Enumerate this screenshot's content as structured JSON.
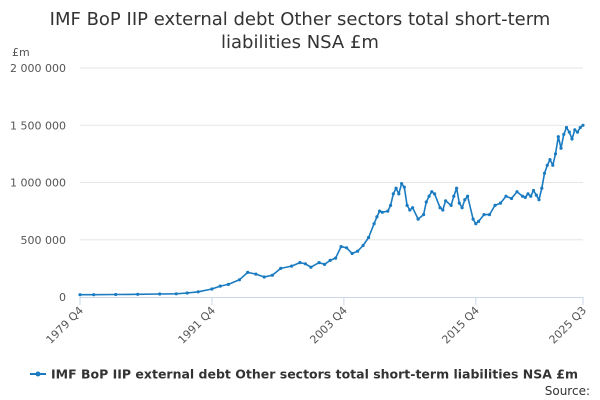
{
  "chart_data": {
    "type": "line",
    "title_lines": [
      "IMF BoP IIP external debt Other sectors total short-term",
      "liabilities NSA £m"
    ],
    "ylabel": "£m",
    "xlabel": "",
    "ylim": [
      0,
      2000000
    ],
    "yticks": [
      {
        "value": 0,
        "label": "0"
      },
      {
        "value": 500000,
        "label": "500 000"
      },
      {
        "value": 1000000,
        "label": "1 000 000"
      },
      {
        "value": 1500000,
        "label": "1 500 000"
      },
      {
        "value": 2000000,
        "label": "2 000 000"
      }
    ],
    "xlim": [
      1979.75,
      2025.5
    ],
    "xticks": [
      {
        "value": 1979.75,
        "label": "1979 Q4"
      },
      {
        "value": 1991.75,
        "label": "1991 Q4"
      },
      {
        "value": 2003.75,
        "label": "2003 Q4"
      },
      {
        "value": 2015.75,
        "label": "2015 Q4"
      },
      {
        "value": 2025.5,
        "label": "2025 Q3"
      }
    ],
    "grid": true,
    "legend_position": "bottom",
    "series": [
      {
        "name": "IMF BoP IIP external debt Other sectors total short-term liabilities NSA £m",
        "color": "#1a7bc1",
        "x": [
          1979.75,
          1981,
          1983,
          1985,
          1987,
          1988.5,
          1989.5,
          1990.5,
          1991.75,
          1992.5,
          1993.25,
          1994.25,
          1995,
          1995.75,
          1996.5,
          1997.25,
          1998,
          1999,
          1999.75,
          2000.25,
          2000.75,
          2001.5,
          2002,
          2002.5,
          2003,
          2003.5,
          2004,
          2004.5,
          2005,
          2005.5,
          2006,
          2006.5,
          2006.75,
          2007,
          2007.25,
          2007.75,
          2008,
          2008.25,
          2008.5,
          2008.75,
          2009,
          2009.25,
          2009.5,
          2009.75,
          2010,
          2010.5,
          2011,
          2011.25,
          2011.5,
          2011.75,
          2012,
          2012.5,
          2012.75,
          2013,
          2013.5,
          2013.75,
          2014,
          2014.25,
          2014.5,
          2014.75,
          2015,
          2015.5,
          2015.75,
          2016,
          2016.5,
          2017,
          2017.5,
          2018,
          2018.5,
          2019,
          2019.5,
          2020,
          2020.25,
          2020.5,
          2020.75,
          2021,
          2021.25,
          2021.5,
          2021.75,
          2022,
          2022.25,
          2022.5,
          2022.75,
          2023,
          2023.25,
          2023.5,
          2023.75,
          2024,
          2024.25,
          2024.5,
          2024.75,
          2025,
          2025.25,
          2025.5
        ],
        "values": [
          20000,
          20000,
          22000,
          24000,
          26000,
          28000,
          35000,
          45000,
          70000,
          95000,
          110000,
          150000,
          215000,
          200000,
          175000,
          190000,
          250000,
          270000,
          300000,
          290000,
          260000,
          300000,
          285000,
          320000,
          340000,
          440000,
          430000,
          380000,
          400000,
          450000,
          520000,
          640000,
          700000,
          750000,
          740000,
          750000,
          800000,
          900000,
          950000,
          900000,
          990000,
          960000,
          800000,
          760000,
          780000,
          680000,
          720000,
          830000,
          880000,
          920000,
          900000,
          780000,
          760000,
          840000,
          800000,
          880000,
          950000,
          820000,
          780000,
          850000,
          880000,
          680000,
          640000,
          660000,
          720000,
          720000,
          800000,
          820000,
          880000,
          860000,
          920000,
          880000,
          870000,
          900000,
          880000,
          930000,
          890000,
          850000,
          950000,
          1080000,
          1150000,
          1200000,
          1150000,
          1250000,
          1400000,
          1300000,
          1420000,
          1480000,
          1440000,
          1380000,
          1460000,
          1440000,
          1480000,
          1500000
        ]
      }
    ],
    "source_label": "Source:"
  }
}
